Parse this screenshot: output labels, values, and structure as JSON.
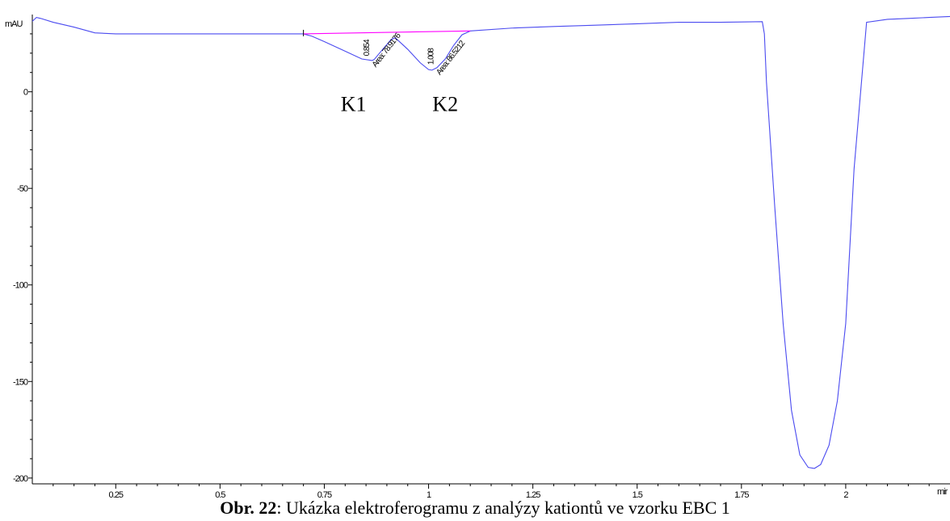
{
  "chart_data": {
    "type": "line",
    "ylabel": "mAU",
    "xlabel": "mir",
    "xlim": [
      0.05,
      2.25
    ],
    "ylim": [
      -203,
      40
    ],
    "x_ticks": [
      {
        "v": 0.25,
        "label": "0.25"
      },
      {
        "v": 0.5,
        "label": "0.5"
      },
      {
        "v": 0.75,
        "label": "0.75"
      },
      {
        "v": 1,
        "label": "1"
      },
      {
        "v": 1.25,
        "label": "1.25"
      },
      {
        "v": 1.5,
        "label": "1.5"
      },
      {
        "v": 1.75,
        "label": "1.75"
      },
      {
        "v": 2,
        "label": "2"
      }
    ],
    "y_ticks": [
      {
        "v": 0,
        "label": "0"
      },
      {
        "v": -50,
        "label": "-50"
      },
      {
        "v": -100,
        "label": "-100"
      },
      {
        "v": -150,
        "label": "-150"
      },
      {
        "v": -200,
        "label": "-200"
      }
    ],
    "series": [
      {
        "color": "#4b4bf0",
        "x": [
          0.05,
          0.06,
          0.07,
          0.1,
          0.15,
          0.2,
          0.25,
          0.35,
          0.5,
          0.6,
          0.7,
          0.72,
          0.75,
          0.8,
          0.84,
          0.865,
          0.87,
          0.89,
          0.91,
          0.92,
          0.95,
          0.98,
          1.0,
          1.008,
          1.02,
          1.04,
          1.06,
          1.08,
          1.1,
          1.2,
          1.3,
          1.4,
          1.5,
          1.6,
          1.7,
          1.8,
          1.805,
          1.81,
          1.83,
          1.85,
          1.87,
          1.89,
          1.91,
          1.925,
          1.94,
          1.96,
          1.98,
          2.0,
          2.02,
          2.05,
          2.1,
          2.15,
          2.2,
          2.25
        ],
        "y": [
          36.5,
          38.5,
          38.0,
          36.0,
          33.5,
          30.5,
          30.0,
          30.0,
          30.0,
          30.0,
          30.0,
          28.8,
          26.0,
          21.0,
          17.0,
          16.2,
          16.8,
          22.0,
          27.0,
          28.0,
          22.0,
          15.0,
          11.5,
          11.2,
          12.5,
          17.0,
          24.0,
          29.5,
          31.5,
          33.0,
          33.8,
          34.5,
          35.2,
          36.0,
          36.0,
          36.3,
          30.0,
          5.0,
          -60.0,
          -120.0,
          -165.0,
          -188.0,
          -194.5,
          -195.0,
          -193.0,
          -183.0,
          -160.0,
          -120.0,
          -40.0,
          36.0,
          37.5,
          38.0,
          38.5,
          39.0
        ]
      },
      {
        "color": "#ff00ff",
        "x": [
          0.7,
          1.1
        ],
        "y": [
          30.0,
          31.5
        ]
      }
    ],
    "peaks": [
      {
        "time": "0.854",
        "area": "Area: 78.9176"
      },
      {
        "time": "1.008",
        "area": "Area: 86.5212"
      }
    ],
    "annotations": [
      {
        "text": "K1",
        "x": 0.82,
        "y": -10
      },
      {
        "text": "K2",
        "x": 1.04,
        "y": -10
      }
    ]
  },
  "caption": {
    "bold": "Obr. 22",
    "rest": ": Ukázka elektroferogramu z analýzy kationtů ve vzorku EBC 1"
  }
}
